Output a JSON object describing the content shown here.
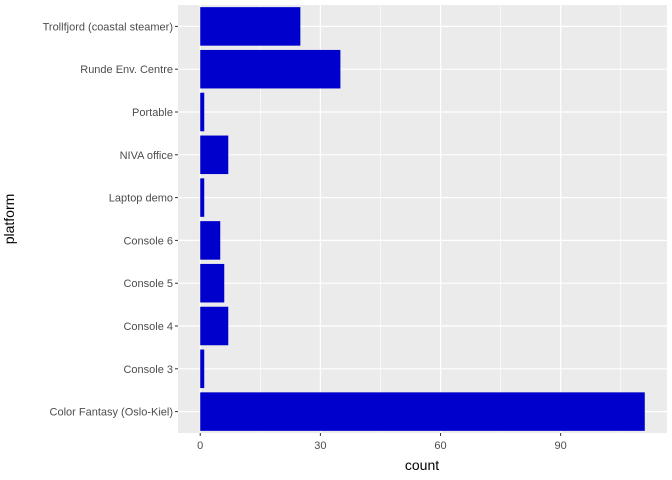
{
  "chart_data": {
    "type": "bar",
    "orientation": "horizontal",
    "xlabel": "count",
    "ylabel": "platform",
    "categories": [
      "Color Fantasy (Oslo-Kiel)",
      "Console 3",
      "Console 4",
      "Console 5",
      "Console 6",
      "Laptop demo",
      "NIVA office",
      "Portable",
      "Runde Env. Centre",
      "Trollfjord (coastal steamer)"
    ],
    "values": [
      111,
      1,
      7,
      6,
      5,
      1,
      7,
      1,
      35,
      25
    ],
    "x_ticks": [
      0,
      30,
      60,
      90
    ],
    "xlim": [
      -5.55,
      116.55
    ],
    "grid": true,
    "legend": "none",
    "colors": {
      "bar": "#0000CD",
      "panel": "#EBEBEB",
      "grid_major": "#FFFFFF",
      "text": "#4D4D4D"
    }
  }
}
